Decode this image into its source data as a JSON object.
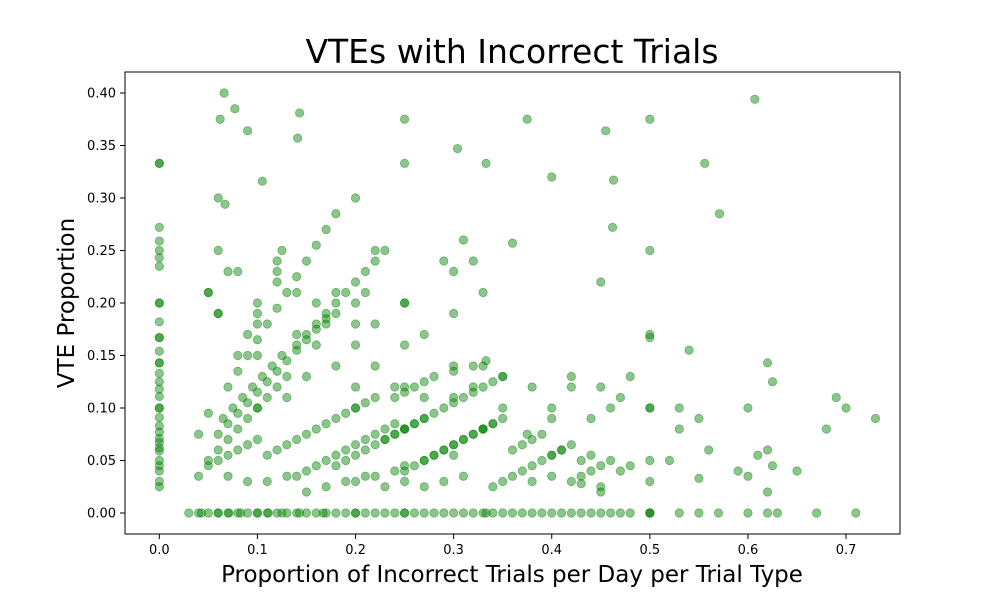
{
  "chart_data": {
    "type": "scatter",
    "title": "VTEs with Incorrect Trials",
    "xlabel": "Proportion of Incorrect Trials per Day per Trial Type",
    "ylabel": "VTE Proportion",
    "xlim": [
      -0.035,
      0.755
    ],
    "ylim": [
      -0.02,
      0.42
    ],
    "xticks": [
      0.0,
      0.1,
      0.2,
      0.3,
      0.4,
      0.5,
      0.6,
      0.7
    ],
    "xtick_labels": [
      "0.0",
      "0.1",
      "0.2",
      "0.3",
      "0.4",
      "0.5",
      "0.6",
      "0.7"
    ],
    "yticks": [
      0.0,
      0.05,
      0.1,
      0.15,
      0.2,
      0.25,
      0.3,
      0.35,
      0.4
    ],
    "ytick_labels": [
      "0.00",
      "0.05",
      "0.10",
      "0.15",
      "0.20",
      "0.25",
      "0.30",
      "0.35",
      "0.40"
    ],
    "grid": false,
    "marker_color": "#008000",
    "marker_alpha": 0.45,
    "x": [
      0,
      0,
      0,
      0,
      0,
      0,
      0,
      0,
      0,
      0,
      0,
      0,
      0,
      0,
      0,
      0,
      0,
      0,
      0,
      0,
      0,
      0,
      0,
      0,
      0,
      0,
      0,
      0,
      0,
      0,
      0,
      0,
      0,
      0.03,
      0.04,
      0.05,
      0.06,
      0.07,
      0.08,
      0.09,
      0.1,
      0.11,
      0.12,
      0.13,
      0.14,
      0.15,
      0.16,
      0.17,
      0.18,
      0.19,
      0.2,
      0.21,
      0.22,
      0.23,
      0.24,
      0.25,
      0.26,
      0.27,
      0.28,
      0.29,
      0.3,
      0.31,
      0.32,
      0.33,
      0.34,
      0.35,
      0.36,
      0.37,
      0.38,
      0.39,
      0.4,
      0.41,
      0.42,
      0.43,
      0.44,
      0.45,
      0.46,
      0.47,
      0.48,
      0.5,
      0.5,
      0.53,
      0.55,
      0.57,
      0.6,
      0.62,
      0.63,
      0.67,
      0.71,
      0.043,
      0.06,
      0.071,
      0.083,
      0.1,
      0.111,
      0.125,
      0.143,
      0.167,
      0.2,
      0.25,
      0.333,
      0.5,
      0.04,
      0.05,
      0.06,
      0.07,
      0.08,
      0.09,
      0.1,
      0.11,
      0.12,
      0.13,
      0.14,
      0.15,
      0.16,
      0.17,
      0.18,
      0.19,
      0.2,
      0.21,
      0.22,
      0.23,
      0.24,
      0.25,
      0.26,
      0.27,
      0.28,
      0.29,
      0.3,
      0.31,
      0.32,
      0.33,
      0.34,
      0.35,
      0.36,
      0.37,
      0.38,
      0.39,
      0.4,
      0.41,
      0.42,
      0.43,
      0.44,
      0.45,
      0.46,
      0.47,
      0.48,
      0.05,
      0.06,
      0.07,
      0.08,
      0.09,
      0.1,
      0.11,
      0.12,
      0.13,
      0.14,
      0.15,
      0.16,
      0.17,
      0.18,
      0.19,
      0.2,
      0.21,
      0.22,
      0.23,
      0.24,
      0.25,
      0.26,
      0.27,
      0.28,
      0.29,
      0.3,
      0.31,
      0.32,
      0.33,
      0.34,
      0.35,
      0.36,
      0.37,
      0.38,
      0.39,
      0.4,
      0.41,
      0.42,
      0.43,
      0.44,
      0.06,
      0.07,
      0.08,
      0.09,
      0.1,
      0.11,
      0.12,
      0.13,
      0.14,
      0.15,
      0.16,
      0.17,
      0.18,
      0.19,
      0.2,
      0.21,
      0.22,
      0.23,
      0.24,
      0.25,
      0.26,
      0.27,
      0.28,
      0.29,
      0.3,
      0.31,
      0.32,
      0.33,
      0.34,
      0.35,
      0.065,
      0.075,
      0.085,
      0.095,
      0.105,
      0.115,
      0.125,
      0.14,
      0.15,
      0.16,
      0.17,
      0.18,
      0.19,
      0.2,
      0.21,
      0.22,
      0.23,
      0.24,
      0.25,
      0.26,
      0.27,
      0.28,
      0.3,
      0.32,
      0.333,
      0.07,
      0.08,
      0.09,
      0.1,
      0.11,
      0.12,
      0.13,
      0.14,
      0.15,
      0.16,
      0.17,
      0.18,
      0.2,
      0.22,
      0.24,
      0.25,
      0.27,
      0.3,
      0.08,
      0.09,
      0.1,
      0.12,
      0.14,
      0.16,
      0.18,
      0.2,
      0.22,
      0.25,
      0.27,
      0.3,
      0.33,
      0.05,
      0.06,
      0.08,
      0.1,
      0.12,
      0.14,
      0.17,
      0.2,
      0.22,
      0.25,
      0.29,
      0.3,
      0.33,
      0.35,
      0.38,
      0.42,
      0.5,
      0.04,
      0.05,
      0.07,
      0.09,
      0.11,
      0.13,
      0.15,
      0.17,
      0.19,
      0.21,
      0.23,
      0.25,
      0.27,
      0.29,
      0.31,
      0.34,
      0.38,
      0.4,
      0.43,
      0.45,
      0.5,
      0.55,
      0.06,
      0.07,
      0.1,
      0.12,
      0.13,
      0.16,
      0.18,
      0.2,
      0.22,
      0.24,
      0.25,
      0.27,
      0.3,
      0.32,
      0.35,
      0.4,
      0.42,
      0.45,
      0.47,
      0.5,
      0.1,
      0.15,
      0.2,
      0.25,
      0.33,
      0.375,
      0.4,
      0.44,
      0.46,
      0.5,
      0.5,
      0.53,
      0.6,
      0.62,
      0.68,
      0.69,
      0.066,
      0.062,
      0.077,
      0.09,
      0.143,
      0.141,
      0.25,
      0.304,
      0.333,
      0.375,
      0.4,
      0.455,
      0.463,
      0.5,
      0.556,
      0.607,
      0.06,
      0.067,
      0.105,
      0.2,
      0.25,
      0.32,
      0.36,
      0.462,
      0.571,
      0.05,
      0.06,
      0.1,
      0.125,
      0.18,
      0.2,
      0.21,
      0.25,
      0.3,
      0.31,
      0.45,
      0.48,
      0.5,
      0.53,
      0.54,
      0.62,
      0.625,
      0.45,
      0.5,
      0.52,
      0.55,
      0.56,
      0.59,
      0.6,
      0.62,
      0.625,
      0.7,
      0.73,
      0.65,
      0.61
    ],
    "y": [
      0.333,
      0.333,
      0.272,
      0.259,
      0.25,
      0.243,
      0.235,
      0.2,
      0.2,
      0.182,
      0.167,
      0.167,
      0.154,
      0.143,
      0.143,
      0.133,
      0.125,
      0.118,
      0.111,
      0.1,
      0.1,
      0.091,
      0.083,
      0.077,
      0.071,
      0.067,
      0.062,
      0.059,
      0.05,
      0.045,
      0.04,
      0.03,
      0.025,
      0,
      0,
      0,
      0,
      0,
      0,
      0,
      0,
      0,
      0,
      0,
      0,
      0,
      0,
      0,
      0,
      0,
      0,
      0,
      0,
      0,
      0,
      0,
      0,
      0,
      0,
      0,
      0,
      0,
      0,
      0,
      0,
      0,
      0,
      0,
      0,
      0,
      0,
      0,
      0,
      0,
      0,
      0,
      0,
      0,
      0,
      0,
      0,
      0,
      0,
      0,
      0,
      0,
      0,
      0,
      0,
      0,
      0,
      0,
      0,
      0,
      0,
      0,
      0,
      0,
      0,
      0,
      0,
      0,
      0.035,
      0.045,
      0.05,
      0.055,
      0.06,
      0.065,
      0.07,
      0.055,
      0.06,
      0.065,
      0.07,
      0.075,
      0.08,
      0.085,
      0.09,
      0.095,
      0.1,
      0.105,
      0.11,
      0.07,
      0.075,
      0.08,
      0.085,
      0.09,
      0.055,
      0.06,
      0.065,
      0.07,
      0.075,
      0.08,
      0.085,
      0.09,
      0.06,
      0.065,
      0.07,
      0.075,
      0.055,
      0.06,
      0.065,
      0.05,
      0.055,
      0.045,
      0.05,
      0.04,
      0.045,
      0.05,
      0.06,
      0.07,
      0.08,
      0.09,
      0.1,
      0.11,
      0.12,
      0.13,
      0.035,
      0.04,
      0.045,
      0.05,
      0.055,
      0.06,
      0.065,
      0.07,
      0.075,
      0.08,
      0.085,
      0.04,
      0.045,
      0.05,
      0.055,
      0.06,
      0.065,
      0.07,
      0.075,
      0.08,
      0.085,
      0.03,
      0.035,
      0.04,
      0.045,
      0.05,
      0.055,
      0.06,
      0.03,
      0.035,
      0.04,
      0.075,
      0.085,
      0.095,
      0.105,
      0.115,
      0.125,
      0.135,
      0.145,
      0.155,
      0.165,
      0.175,
      0.185,
      0.045,
      0.05,
      0.055,
      0.06,
      0.065,
      0.07,
      0.075,
      0.08,
      0.085,
      0.09,
      0.095,
      0.1,
      0.105,
      0.11,
      0.115,
      0.12,
      0.125,
      0.13,
      0.09,
      0.1,
      0.11,
      0.12,
      0.13,
      0.14,
      0.15,
      0.16,
      0.17,
      0.18,
      0.19,
      0.2,
      0.21,
      0.22,
      0.23,
      0.24,
      0.25,
      0.11,
      0.115,
      0.12,
      0.125,
      0.13,
      0.135,
      0.14,
      0.145,
      0.12,
      0.135,
      0.15,
      0.165,
      0.18,
      0.195,
      0.21,
      0.225,
      0.24,
      0.255,
      0.27,
      0.285,
      0.03,
      0.035,
      0.04,
      0.045,
      0.05,
      0.055,
      0.15,
      0.17,
      0.19,
      0.23,
      0.21,
      0.2,
      0.19,
      0.2,
      0.18,
      0.2,
      0.17,
      0.19,
      0.21,
      0.21,
      0.19,
      0.23,
      0.2,
      0.24,
      0.17,
      0.18,
      0.16,
      0.25,
      0.16,
      0.24,
      0.14,
      0.14,
      0.13,
      0.12,
      0.13,
      0.17,
      0.075,
      0.095,
      0.035,
      0.03,
      0.03,
      0.035,
      0.02,
      0.025,
      0.03,
      0.035,
      0.025,
      0.03,
      0.025,
      0.03,
      0.035,
      0.025,
      0.03,
      0.035,
      0.028,
      0.025,
      0.03,
      0.033,
      0.19,
      0.23,
      0.15,
      0.22,
      0.11,
      0.16,
      0.14,
      0.12,
      0.14,
      0.12,
      0.12,
      0.11,
      0.11,
      0.12,
      0.1,
      0.1,
      0.12,
      0.12,
      0.11,
      0.1,
      0.1,
      0.13,
      0.1,
      0.08,
      0.08,
      0.075,
      0.09,
      0.09,
      0.1,
      0.1,
      0.05,
      0.08,
      0.1,
      0.06,
      0.08,
      0.11,
      0.4,
      0.375,
      0.385,
      0.364,
      0.381,
      0.357,
      0.375,
      0.347,
      0.333,
      0.375,
      0.32,
      0.364,
      0.317,
      0.375,
      0.333,
      0.394,
      0.3,
      0.294,
      0.316,
      0.3,
      0.333,
      0.24,
      0.257,
      0.272,
      0.285,
      0.21,
      0.25,
      0.18,
      0.25,
      0.21,
      0.18,
      0.21,
      0.2,
      0.23,
      0.26,
      0.22,
      0.13,
      0.25,
      0.1,
      0.155,
      0.143,
      0.125,
      0.02,
      0.167,
      0.05,
      0.09,
      0.06,
      0.04,
      0.035,
      0.02,
      0.045,
      0.1,
      0.09,
      0.04,
      0.055
    ]
  }
}
